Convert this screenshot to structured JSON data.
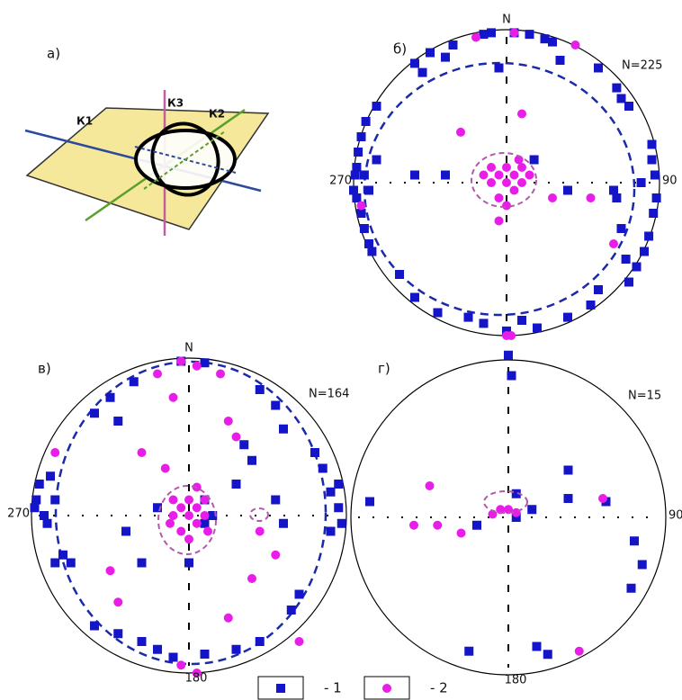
{
  "diagram": {
    "label": "а)",
    "axes": [
      "К1",
      "К2",
      "К3"
    ]
  },
  "legend": [
    {
      "label": "- 1",
      "color": "#1414c8",
      "marker": "square"
    },
    {
      "label": "- 2",
      "color": "#e81ee8",
      "marker": "circle"
    }
  ],
  "chart_data": [
    {
      "type": "stereonet",
      "label": "б)",
      "north": "N",
      "west": "270",
      "east": "90",
      "count_label": "N=225",
      "xlim": [
        -1,
        1
      ],
      "ylim": [
        -1,
        1
      ],
      "series": [
        {
          "color": "#1414c8",
          "marker": "square",
          "points": [
            [
              -0.15,
              0.97
            ],
            [
              -0.1,
              0.98
            ],
            [
              0.05,
              0.98
            ],
            [
              0.15,
              0.97
            ],
            [
              0.25,
              0.94
            ],
            [
              0.3,
              0.92
            ],
            [
              -0.35,
              0.9
            ],
            [
              -0.5,
              0.85
            ],
            [
              -0.6,
              0.78
            ],
            [
              -0.55,
              0.72
            ],
            [
              -0.4,
              0.82
            ],
            [
              0.35,
              0.8
            ],
            [
              0.6,
              0.75
            ],
            [
              0.72,
              0.62
            ],
            [
              0.75,
              0.55
            ],
            [
              0.8,
              0.5
            ],
            [
              -0.95,
              0.3
            ],
            [
              -0.97,
              0.2
            ],
            [
              -0.98,
              0.1
            ],
            [
              -0.99,
              0.05
            ],
            [
              -1.0,
              -0.05
            ],
            [
              -0.98,
              -0.1
            ],
            [
              -0.95,
              -0.2
            ],
            [
              -0.93,
              -0.3
            ],
            [
              -0.9,
              -0.4
            ],
            [
              -0.88,
              -0.45
            ],
            [
              -0.92,
              0.4
            ],
            [
              -0.85,
              0.5
            ],
            [
              -0.9,
              -0.05
            ],
            [
              -0.93,
              0.05
            ],
            [
              -0.85,
              0.15
            ],
            [
              0.95,
              0.15
            ],
            [
              0.97,
              0.05
            ],
            [
              0.98,
              -0.1
            ],
            [
              0.96,
              -0.2
            ],
            [
              0.93,
              -0.35
            ],
            [
              0.9,
              -0.45
            ],
            [
              0.85,
              -0.55
            ],
            [
              0.8,
              -0.65
            ],
            [
              0.95,
              0.25
            ],
            [
              0.88,
              0.0
            ],
            [
              0.72,
              -0.1
            ],
            [
              0.75,
              -0.3
            ],
            [
              0.78,
              -0.5
            ],
            [
              -0.6,
              -0.75
            ],
            [
              -0.45,
              -0.85
            ],
            [
              -0.25,
              -0.88
            ],
            [
              -0.15,
              -0.92
            ],
            [
              0.0,
              -0.97
            ],
            [
              0.1,
              -0.9
            ],
            [
              0.2,
              -0.95
            ],
            [
              0.4,
              -0.88
            ],
            [
              0.55,
              -0.8
            ],
            [
              0.6,
              -0.7
            ],
            [
              -0.7,
              -0.6
            ],
            [
              -0.6,
              0.05
            ],
            [
              -0.4,
              0.05
            ],
            [
              0.18,
              0.15
            ],
            [
              0.4,
              -0.05
            ],
            [
              0.7,
              -0.05
            ],
            [
              -0.05,
              0.75
            ]
          ]
        },
        {
          "color": "#e81ee8",
          "marker": "circle",
          "points": [
            [
              0,
              0
            ],
            [
              0.05,
              0.05
            ],
            [
              -0.05,
              0.05
            ],
            [
              0.1,
              0
            ],
            [
              -0.1,
              0
            ],
            [
              0,
              0.1
            ],
            [
              0.05,
              -0.05
            ],
            [
              -0.05,
              -0.1
            ],
            [
              0.1,
              0.1
            ],
            [
              -0.1,
              0.1
            ],
            [
              0.15,
              0.05
            ],
            [
              -0.15,
              0.05
            ],
            [
              0,
              -0.15
            ],
            [
              -0.05,
              -0.25
            ],
            [
              0.08,
              0.15
            ],
            [
              0.05,
              0.98
            ],
            [
              -0.2,
              0.95
            ],
            [
              0.45,
              0.9
            ],
            [
              0.1,
              0.45
            ],
            [
              -0.3,
              0.33
            ],
            [
              0.55,
              -0.1
            ],
            [
              0.7,
              -0.4
            ],
            [
              -0.95,
              -0.15
            ],
            [
              0,
              -1.0
            ],
            [
              0.03,
              -1.0
            ],
            [
              0.3,
              -0.1
            ]
          ]
        }
      ]
    },
    {
      "type": "stereonet",
      "label": "в)",
      "north": "N",
      "west": "270",
      "south": "180",
      "count_label": "N=164",
      "xlim": [
        -1,
        1
      ],
      "ylim": [
        -1,
        1
      ],
      "series": [
        {
          "color": "#1414c8",
          "marker": "square",
          "points": [
            [
              -0.05,
              0.98
            ],
            [
              0.1,
              0.97
            ],
            [
              -0.35,
              0.85
            ],
            [
              -0.5,
              0.75
            ],
            [
              -0.6,
              0.65
            ],
            [
              -0.45,
              0.6
            ],
            [
              0.45,
              0.8
            ],
            [
              0.55,
              0.7
            ],
            [
              0.6,
              0.55
            ],
            [
              0.35,
              0.45
            ],
            [
              0.4,
              0.35
            ],
            [
              -0.95,
              0.2
            ],
            [
              -0.97,
              0.1
            ],
            [
              -0.98,
              0.05
            ],
            [
              -0.92,
              0.0
            ],
            [
              -0.9,
              -0.05
            ],
            [
              -0.85,
              0.1
            ],
            [
              -0.88,
              0.25
            ],
            [
              -0.8,
              -0.25
            ],
            [
              -0.85,
              -0.3
            ],
            [
              -0.75,
              -0.3
            ],
            [
              0.95,
              0.2
            ],
            [
              0.95,
              0.05
            ],
            [
              0.97,
              -0.05
            ],
            [
              0.9,
              -0.1
            ],
            [
              0.85,
              0.3
            ],
            [
              0.8,
              0.4
            ],
            [
              0.9,
              0.15
            ],
            [
              0.6,
              -0.05
            ],
            [
              0.55,
              0.1
            ],
            [
              0.7,
              -0.5
            ],
            [
              0.65,
              -0.6
            ],
            [
              -0.6,
              -0.7
            ],
            [
              -0.45,
              -0.75
            ],
            [
              -0.3,
              -0.8
            ],
            [
              -0.2,
              -0.85
            ],
            [
              -0.1,
              -0.9
            ],
            [
              0.1,
              -0.88
            ],
            [
              0.3,
              -0.85
            ],
            [
              0.45,
              -0.8
            ],
            [
              -0.3,
              -0.3
            ],
            [
              0,
              -0.3
            ],
            [
              0.1,
              0.1
            ],
            [
              0.15,
              0
            ],
            [
              0.1,
              -0.05
            ],
            [
              -0.2,
              0.05
            ],
            [
              0.3,
              0.2
            ],
            [
              -0.4,
              -0.1
            ]
          ]
        },
        {
          "color": "#e81ee8",
          "marker": "circle",
          "points": [
            [
              0,
              0
            ],
            [
              0.05,
              0.05
            ],
            [
              -0.05,
              0.05
            ],
            [
              0.1,
              0
            ],
            [
              -0.1,
              0
            ],
            [
              0,
              0.1
            ],
            [
              0.05,
              -0.05
            ],
            [
              -0.05,
              -0.1
            ],
            [
              0.1,
              0.1
            ],
            [
              -0.1,
              0.1
            ],
            [
              0.12,
              -0.1
            ],
            [
              -0.12,
              -0.05
            ],
            [
              0,
              -0.15
            ],
            [
              0.05,
              0.18
            ],
            [
              -0.05,
              0.98
            ],
            [
              0.05,
              0.95
            ],
            [
              -0.2,
              0.9
            ],
            [
              0.2,
              0.9
            ],
            [
              -0.1,
              0.75
            ],
            [
              0.25,
              0.6
            ],
            [
              -0.3,
              0.4
            ],
            [
              0.3,
              0.5
            ],
            [
              -0.15,
              0.3
            ],
            [
              0.45,
              -0.1
            ],
            [
              0.55,
              -0.25
            ],
            [
              0.4,
              -0.4
            ],
            [
              -0.5,
              -0.35
            ],
            [
              -0.45,
              -0.55
            ],
            [
              0.25,
              -0.65
            ],
            [
              0.7,
              -0.8
            ],
            [
              -0.05,
              -0.95
            ],
            [
              0.05,
              -1.0
            ],
            [
              -0.85,
              0.4
            ]
          ]
        }
      ]
    },
    {
      "type": "stereonet",
      "label": "г)",
      "east": "90",
      "south": "180",
      "count_label": "N=15",
      "xlim": [
        -1,
        1
      ],
      "ylim": [
        -1,
        1
      ],
      "series": [
        {
          "color": "#1414c8",
          "marker": "square",
          "points": [
            [
              0,
              1.03
            ],
            [
              0.02,
              0.9
            ],
            [
              -0.88,
              0.1
            ],
            [
              0.38,
              0.3
            ],
            [
              0.38,
              0.12
            ],
            [
              0.62,
              0.1
            ],
            [
              0.15,
              0.05
            ],
            [
              0.05,
              0.0
            ],
            [
              -0.2,
              -0.05
            ],
            [
              0.05,
              0.15
            ],
            [
              0.8,
              -0.15
            ],
            [
              0.85,
              -0.3
            ],
            [
              0.78,
              -0.45
            ],
            [
              -0.25,
              -0.85
            ],
            [
              0.18,
              -0.82
            ],
            [
              0.25,
              -0.87
            ]
          ]
        },
        {
          "color": "#e81ee8",
          "marker": "circle",
          "points": [
            [
              -0.5,
              0.2
            ],
            [
              -0.6,
              -0.05
            ],
            [
              -0.45,
              -0.05
            ],
            [
              -0.3,
              -0.1
            ],
            [
              0.6,
              0.12
            ],
            [
              0.45,
              -0.85
            ],
            [
              0,
              0.05
            ],
            [
              -0.05,
              0.05
            ],
            [
              0.05,
              0.03
            ],
            [
              -0.1,
              0.02
            ]
          ]
        }
      ]
    }
  ]
}
